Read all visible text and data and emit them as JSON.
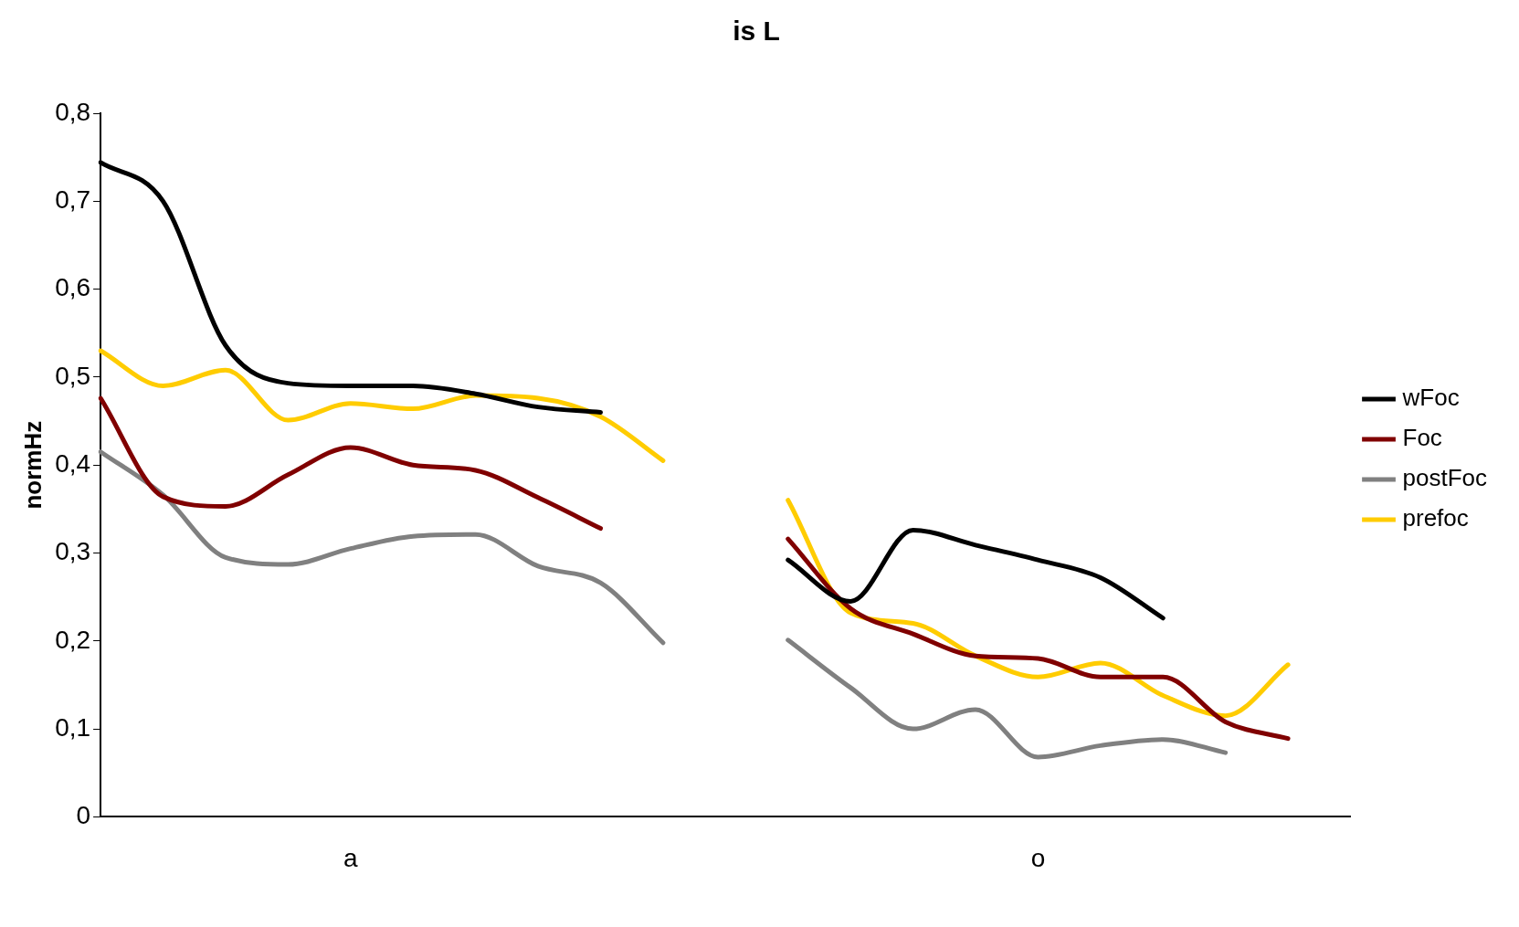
{
  "chart_data": {
    "type": "line",
    "title": "is L",
    "ylabel": "normHz",
    "categories": [
      null,
      null,
      null,
      null,
      "a",
      null,
      null,
      null,
      null,
      null,
      null,
      null,
      null,
      null,
      null,
      "o",
      null,
      null,
      null,
      null,
      null
    ],
    "series": [
      {
        "name": "wFoc",
        "color": "#000000",
        "values": [
          0.744,
          0.7,
          0.536,
          0.493,
          0.49,
          0.49,
          0.481,
          0.466,
          0.46,
          null,
          null,
          0.292,
          0.245,
          0.326,
          0.309,
          0.292,
          0.272,
          0.226,
          null,
          null,
          null
        ]
      },
      {
        "name": "Foc",
        "color": "#800000",
        "values": [
          0.476,
          0.364,
          0.353,
          0.389,
          0.42,
          0.4,
          0.394,
          0.363,
          0.328,
          null,
          null,
          0.316,
          0.237,
          0.208,
          0.183,
          0.18,
          0.159,
          0.159,
          0.108,
          0.089,
          null
        ]
      },
      {
        "name": "postFoc",
        "color": "#808080",
        "values": [
          0.415,
          0.366,
          0.295,
          0.287,
          0.305,
          0.319,
          0.321,
          0.285,
          0.266,
          0.198,
          null,
          0.201,
          0.147,
          0.1,
          0.122,
          0.068,
          0.081,
          0.088,
          0.073,
          null,
          null
        ]
      },
      {
        "name": "prefoc",
        "color": "#ffcc00",
        "values": [
          0.53,
          0.49,
          0.508,
          0.451,
          0.47,
          0.464,
          0.479,
          0.476,
          0.455,
          0.405,
          null,
          0.36,
          0.232,
          0.22,
          0.183,
          0.159,
          0.175,
          0.138,
          0.115,
          0.173,
          null
        ]
      }
    ],
    "ylim": [
      0,
      0.8
    ],
    "yticks": [
      0,
      {
        "value": 0.1,
        "label": "0,1"
      },
      {
        "value": 0.2,
        "label": "0,2"
      },
      {
        "value": 0.3,
        "label": "0,3"
      },
      {
        "value": 0.4,
        "label": "0,4"
      },
      {
        "value": 0.5,
        "label": "0,5"
      },
      {
        "value": 0.6,
        "label": "0,6"
      },
      {
        "value": 0.7,
        "label": "0,7"
      },
      {
        "value": 0.8,
        "label": "0,8"
      }
    ],
    "grid": false,
    "legend": "right"
  }
}
